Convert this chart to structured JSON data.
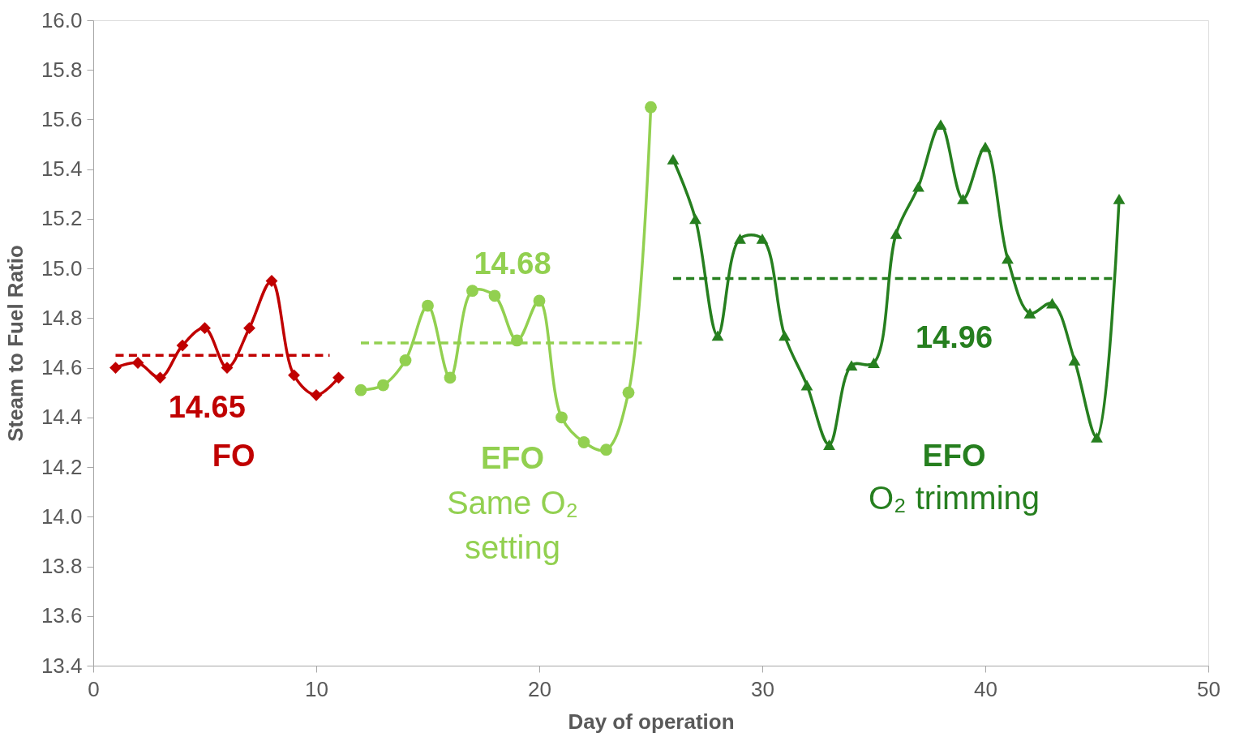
{
  "chart_data": {
    "type": "line",
    "xlabel": "Day of operation",
    "ylabel": "Steam to Fuel Ratio",
    "xlim": [
      0,
      50
    ],
    "xticks": [
      0,
      10,
      20,
      30,
      40,
      50
    ],
    "ylim": [
      13.4,
      16.0
    ],
    "yticks": [
      13.4,
      13.6,
      13.8,
      {
        "value": 14,
        "label": "14.0"
      },
      14.2,
      14.4,
      14.6,
      14.8,
      {
        "value": 15,
        "label": "15.0"
      },
      15.2,
      15.4,
      15.6,
      15.8,
      {
        "value": 16,
        "label": "16.0"
      }
    ],
    "grid": false,
    "series": [
      {
        "color": "#c00000",
        "marker": "diamond",
        "line_style": "solid",
        "x": [
          1,
          2,
          3,
          4,
          5,
          6,
          7,
          8,
          9,
          10,
          11
        ],
        "values": [
          14.6,
          14.62,
          14.56,
          14.69,
          14.76,
          14.6,
          14.76,
          14.95,
          14.57,
          14.49,
          14.56
        ]
      },
      {
        "color": "#92d050",
        "marker": "circle",
        "line_style": "solid",
        "x": [
          12,
          13,
          14,
          15,
          16,
          17,
          18,
          19,
          20,
          21,
          22,
          23,
          24,
          25
        ],
        "values": [
          14.51,
          14.53,
          14.63,
          14.85,
          14.56,
          14.91,
          14.89,
          14.71,
          14.87,
          14.4,
          14.3,
          14.27,
          14.5,
          15.65
        ]
      },
      {
        "color": "#267f1f",
        "marker": "triangle",
        "line_style": "solid",
        "x": [
          26,
          27,
          28,
          29,
          30,
          31,
          32,
          33,
          34,
          35,
          36,
          37,
          38,
          39,
          40,
          41,
          42,
          43,
          44,
          45,
          46
        ],
        "values": [
          15.44,
          15.2,
          14.73,
          15.12,
          15.12,
          14.73,
          14.53,
          14.29,
          14.61,
          14.62,
          15.14,
          15.33,
          15.58,
          15.28,
          15.49,
          15.04,
          14.82,
          14.86,
          14.63,
          14.32,
          15.28
        ]
      },
      {
        "color": "#c00000",
        "marker": "none",
        "line_style": "dashed",
        "x": [
          1,
          10.6
        ],
        "values": [
          14.65,
          14.65
        ]
      },
      {
        "color": "#92d050",
        "marker": "none",
        "line_style": "dashed",
        "x": [
          12,
          24.6
        ],
        "values": [
          14.7,
          14.7
        ]
      },
      {
        "color": "#267f1f",
        "marker": "none",
        "line_style": "dashed",
        "x": [
          26,
          45.7
        ],
        "values": [
          14.96,
          14.96
        ]
      }
    ],
    "annotations": [
      {
        "text": "14.65",
        "x": 5.1,
        "y": 14.65
      },
      "FO",
      {
        "text": "14.68",
        "x": 18.8,
        "y": 14.7
      },
      "EFO",
      "Same O₂",
      "setting",
      {
        "text": "14.96",
        "x": 38.6,
        "y": 14.96
      },
      "EFO",
      "O₂ trimming"
    ]
  }
}
